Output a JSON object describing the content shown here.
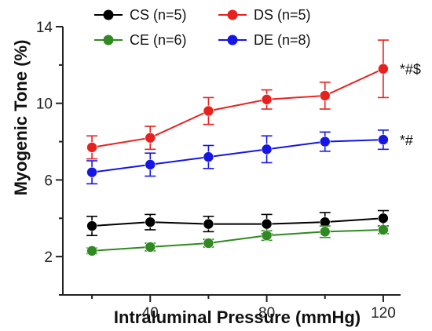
{
  "chart_data": {
    "type": "line",
    "xlabel": "Intraluminal Pressure (mmHg)",
    "ylabel": "Myogenic Tone (%)",
    "xlim": [
      10,
      130
    ],
    "ylim": [
      0,
      14
    ],
    "x_ticks": [
      40,
      80,
      120
    ],
    "y_ticks": [
      2,
      6,
      10,
      14
    ],
    "legend_placement": "top",
    "grid": false,
    "x": [
      20,
      40,
      60,
      80,
      100,
      120
    ],
    "series": [
      {
        "name": "CS (n=5)",
        "color": "#000000",
        "values": [
          3.6,
          3.8,
          3.7,
          3.7,
          3.8,
          4.0
        ],
        "errors": [
          0.5,
          0.4,
          0.4,
          0.5,
          0.5,
          0.4
        ],
        "annotation": ""
      },
      {
        "name": "DS (n=5)",
        "color": "#e8211e",
        "values": [
          7.7,
          8.2,
          9.6,
          10.2,
          10.4,
          11.8
        ],
        "errors": [
          0.6,
          0.6,
          0.7,
          0.5,
          0.7,
          1.5
        ],
        "annotation": "*#$"
      },
      {
        "name": "CE (n=6)",
        "color": "#2f8a1f",
        "values": [
          2.3,
          2.5,
          2.7,
          3.1,
          3.3,
          3.4
        ],
        "errors": [
          0.15,
          0.2,
          0.2,
          0.25,
          0.3,
          0.2
        ],
        "annotation": ""
      },
      {
        "name": "DE (n=8)",
        "color": "#1515e6",
        "values": [
          6.4,
          6.8,
          7.2,
          7.6,
          8.0,
          8.1
        ],
        "errors": [
          0.6,
          0.6,
          0.6,
          0.7,
          0.5,
          0.5
        ],
        "annotation": "*#"
      }
    ]
  }
}
